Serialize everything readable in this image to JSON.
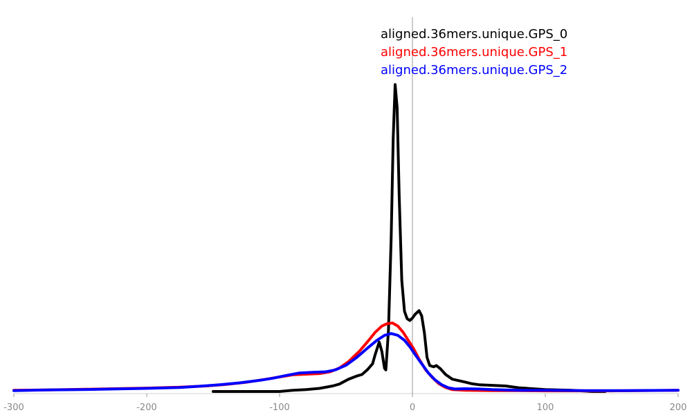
{
  "chart_data": {
    "type": "line",
    "title": "",
    "xlabel": "",
    "ylabel": "",
    "xlim": [
      -300,
      200
    ],
    "ylim": [
      0,
      1
    ],
    "grid": false,
    "legend_position": "top-right",
    "xticks": [
      -300,
      -200,
      -100,
      0,
      100,
      200
    ],
    "xtick_labels": [
      "-300",
      "-200",
      "-100",
      "0",
      "100",
      "200"
    ],
    "series": [
      {
        "name": "aligned.36mers.unique.GPS_0",
        "color": "#000000",
        "points": [
          [
            -150,
            0.0
          ],
          [
            -140,
            0.0
          ],
          [
            -120,
            0.0
          ],
          [
            -110,
            0.0
          ],
          [
            -100,
            0.0
          ],
          [
            -90,
            0.004
          ],
          [
            -80,
            0.006
          ],
          [
            -70,
            0.01
          ],
          [
            -60,
            0.018
          ],
          [
            -55,
            0.024
          ],
          [
            -48,
            0.04
          ],
          [
            -42,
            0.05
          ],
          [
            -38,
            0.055
          ],
          [
            -34,
            0.07
          ],
          [
            -30,
            0.09
          ],
          [
            -28,
            0.12
          ],
          [
            -25,
            0.16
          ],
          [
            -23,
            0.13
          ],
          [
            -21,
            0.075
          ],
          [
            -20,
            0.07
          ],
          [
            -18,
            0.2
          ],
          [
            -16,
            0.5
          ],
          [
            -14.5,
            0.82
          ],
          [
            -13,
            0.995
          ],
          [
            -11.5,
            0.92
          ],
          [
            -10,
            0.64
          ],
          [
            -8,
            0.36
          ],
          [
            -6,
            0.26
          ],
          [
            -4,
            0.236
          ],
          [
            -2,
            0.23
          ],
          [
            0,
            0.238
          ],
          [
            2,
            0.25
          ],
          [
            5,
            0.262
          ],
          [
            7,
            0.245
          ],
          [
            9,
            0.19
          ],
          [
            11,
            0.11
          ],
          [
            13,
            0.084
          ],
          [
            16,
            0.08
          ],
          [
            18,
            0.084
          ],
          [
            21,
            0.074
          ],
          [
            25,
            0.055
          ],
          [
            30,
            0.04
          ],
          [
            40,
            0.03
          ],
          [
            45,
            0.025
          ],
          [
            50,
            0.022
          ],
          [
            60,
            0.02
          ],
          [
            70,
            0.018
          ],
          [
            80,
            0.012
          ],
          [
            100,
            0.006
          ],
          [
            120,
            0.004
          ],
          [
            135,
            0.0
          ],
          [
            145,
            0.0
          ]
        ]
      },
      {
        "name": "aligned.36mers.unique.GPS_1",
        "color": "#ff0000",
        "points": [
          [
            -300,
            0.004
          ],
          [
            -275,
            0.005
          ],
          [
            -250,
            0.007
          ],
          [
            -225,
            0.009
          ],
          [
            -200,
            0.011
          ],
          [
            -175,
            0.014
          ],
          [
            -155,
            0.018
          ],
          [
            -140,
            0.023
          ],
          [
            -125,
            0.03
          ],
          [
            -110,
            0.04
          ],
          [
            -100,
            0.047
          ],
          [
            -90,
            0.054
          ],
          [
            -80,
            0.056
          ],
          [
            -70,
            0.058
          ],
          [
            -62,
            0.064
          ],
          [
            -55,
            0.076
          ],
          [
            -48,
            0.097
          ],
          [
            -40,
            0.13
          ],
          [
            -34,
            0.16
          ],
          [
            -28,
            0.192
          ],
          [
            -23,
            0.212
          ],
          [
            -19,
            0.22
          ],
          [
            -15,
            0.222
          ],
          [
            -11,
            0.212
          ],
          [
            -7,
            0.192
          ],
          [
            -3,
            0.165
          ],
          [
            1,
            0.138
          ],
          [
            5,
            0.105
          ],
          [
            10,
            0.07
          ],
          [
            15,
            0.045
          ],
          [
            20,
            0.025
          ],
          [
            25,
            0.013
          ],
          [
            30,
            0.006
          ],
          [
            40,
            0.004
          ],
          [
            60,
            0.003
          ],
          [
            80,
            0.003
          ],
          [
            100,
            0.002
          ],
          [
            120,
            0.002
          ],
          [
            150,
            0.002
          ],
          [
            170,
            0.003
          ],
          [
            200,
            0.004
          ]
        ]
      },
      {
        "name": "aligned.36mers.unique.GPS_2",
        "color": "#0000ff",
        "points": [
          [
            -300,
            0.003
          ],
          [
            -275,
            0.005
          ],
          [
            -250,
            0.006
          ],
          [
            -225,
            0.008
          ],
          [
            -200,
            0.01
          ],
          [
            -175,
            0.013
          ],
          [
            -160,
            0.017
          ],
          [
            -145,
            0.022
          ],
          [
            -130,
            0.028
          ],
          [
            -115,
            0.036
          ],
          [
            -105,
            0.043
          ],
          [
            -95,
            0.052
          ],
          [
            -85,
            0.06
          ],
          [
            -75,
            0.062
          ],
          [
            -65,
            0.064
          ],
          [
            -58,
            0.07
          ],
          [
            -50,
            0.085
          ],
          [
            -42,
            0.11
          ],
          [
            -34,
            0.14
          ],
          [
            -27,
            0.165
          ],
          [
            -21,
            0.182
          ],
          [
            -16,
            0.188
          ],
          [
            -11,
            0.182
          ],
          [
            -6,
            0.166
          ],
          [
            -2,
            0.145
          ],
          [
            2,
            0.12
          ],
          [
            7,
            0.09
          ],
          [
            12,
            0.06
          ],
          [
            17,
            0.038
          ],
          [
            22,
            0.022
          ],
          [
            27,
            0.012
          ],
          [
            32,
            0.008
          ],
          [
            40,
            0.009
          ],
          [
            50,
            0.008
          ],
          [
            60,
            0.006
          ],
          [
            80,
            0.004
          ],
          [
            100,
            0.004
          ],
          [
            130,
            0.003
          ],
          [
            160,
            0.003
          ],
          [
            200,
            0.004
          ]
        ]
      }
    ]
  }
}
